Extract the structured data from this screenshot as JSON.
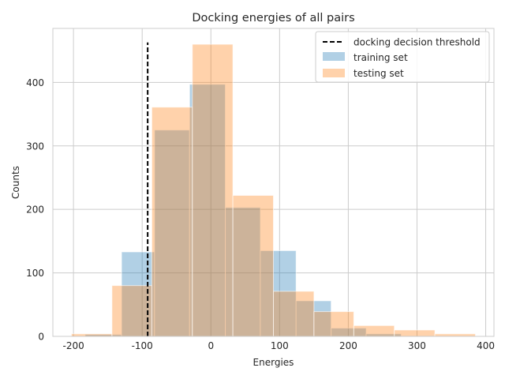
{
  "chart_data": {
    "type": "histogram",
    "title": "Docking energies of all pairs",
    "xlabel": "Energies",
    "ylabel": "Counts",
    "xlim": [
      -230,
      412
    ],
    "ylim": [
      0,
      485
    ],
    "xticks": [
      -200,
      -100,
      0,
      100,
      200,
      300,
      400
    ],
    "yticks": [
      0,
      100,
      200,
      300,
      400
    ],
    "grid": true,
    "legend_position": "top-right",
    "threshold": {
      "name": "docking decision threshold",
      "x": -92,
      "y_range": [
        0,
        463
      ],
      "color": "#000000",
      "style": "dashed"
    },
    "series": [
      {
        "name": "training set",
        "color": "#1f77b4",
        "alpha": 0.35,
        "bins": [
          {
            "x0": -183,
            "x1": -130,
            "count": 3
          },
          {
            "x0": -130,
            "x1": -82,
            "count": 133
          },
          {
            "x0": -82,
            "x1": -31,
            "count": 325
          },
          {
            "x0": -31,
            "x1": 21,
            "count": 397
          },
          {
            "x0": 21,
            "x1": 72,
            "count": 203
          },
          {
            "x0": 72,
            "x1": 124,
            "count": 135
          },
          {
            "x0": 124,
            "x1": 175,
            "count": 56
          },
          {
            "x0": 175,
            "x1": 226,
            "count": 13
          },
          {
            "x0": 226,
            "x1": 277,
            "count": 4
          }
        ]
      },
      {
        "name": "testing set",
        "color": "#ff7f0e",
        "alpha": 0.35,
        "bins": [
          {
            "x0": -203,
            "x1": -144,
            "count": 4
          },
          {
            "x0": -144,
            "x1": -86,
            "count": 80
          },
          {
            "x0": -86,
            "x1": -27,
            "count": 361
          },
          {
            "x0": -27,
            "x1": 32,
            "count": 460
          },
          {
            "x0": 32,
            "x1": 91,
            "count": 222
          },
          {
            "x0": 91,
            "x1": 150,
            "count": 71
          },
          {
            "x0": 150,
            "x1": 208,
            "count": 39
          },
          {
            "x0": 208,
            "x1": 267,
            "count": 17
          },
          {
            "x0": 267,
            "x1": 326,
            "count": 10
          },
          {
            "x0": 326,
            "x1": 385,
            "count": 4
          }
        ]
      }
    ]
  }
}
